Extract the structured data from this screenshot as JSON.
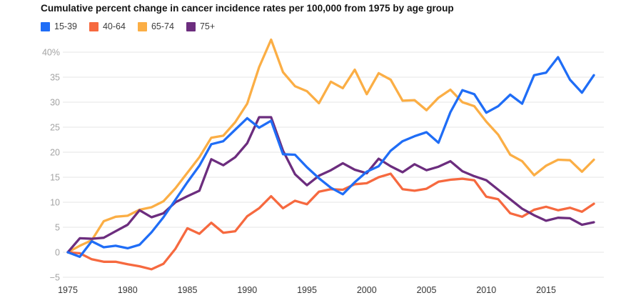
{
  "title": "Cumulative percent change in cancer incidence rates per 100,000 from 1975 by age group",
  "legend": [
    {
      "label": "15-39",
      "color": "#1f6df6"
    },
    {
      "label": "40-64",
      "color": "#f6693f"
    },
    {
      "label": "65-74",
      "color": "#fbae45"
    },
    {
      "label": "75+",
      "color": "#6c2d7e"
    }
  ],
  "colors": {
    "gridline": "#e4e4e4",
    "y_tick_text": "#a3a3a3",
    "x_tick_text": "#363636",
    "title_text": "#141414"
  },
  "chart_data": {
    "type": "line",
    "title": "Cumulative percent change in cancer incidence rates per 100,000 from 1975 by age group",
    "grid": true,
    "legend_position": "top-left",
    "x": [
      1975,
      1976,
      1977,
      1978,
      1979,
      1980,
      1981,
      1982,
      1983,
      1984,
      1985,
      1986,
      1987,
      1988,
      1989,
      1990,
      1991,
      1992,
      1993,
      1994,
      1995,
      1996,
      1997,
      1998,
      1999,
      2000,
      2001,
      2002,
      2003,
      2004,
      2005,
      2006,
      2007,
      2008,
      2009,
      2010,
      2011,
      2012,
      2013,
      2014,
      2015,
      2016,
      2017,
      2018,
      2019
    ],
    "series": [
      {
        "name": "15-39",
        "color": "#1f6df6",
        "values": [
          0,
          -0.9,
          2.2,
          1.0,
          1.3,
          0.8,
          1.5,
          4.0,
          7.0,
          10.5,
          14.0,
          17.3,
          21.6,
          22.2,
          24.5,
          26.8,
          24.9,
          26.3,
          19.6,
          19.5,
          17.0,
          14.8,
          12.9,
          11.6,
          14.0,
          16.1,
          17.2,
          20.3,
          22.2,
          23.2,
          24.0,
          21.9,
          28.0,
          32.4,
          31.6,
          27.9,
          29.2,
          31.5,
          29.7,
          35.4,
          35.9,
          39.0,
          34.5,
          31.9,
          35.4
        ]
      },
      {
        "name": "40-64",
        "color": "#f6693f",
        "values": [
          0,
          -0.2,
          -1.4,
          -1.9,
          -1.9,
          -2.4,
          -2.8,
          -3.4,
          -2.3,
          0.7,
          4.8,
          3.7,
          5.9,
          3.9,
          4.2,
          7.2,
          8.8,
          11.2,
          8.8,
          10.3,
          9.6,
          12.1,
          12.6,
          12.5,
          13.6,
          13.8,
          15.0,
          15.7,
          12.6,
          12.3,
          12.7,
          14.1,
          14.5,
          14.7,
          14.4,
          11.1,
          10.6,
          7.8,
          7.1,
          8.5,
          9.1,
          8.4,
          8.9,
          8.1,
          9.7
        ]
      },
      {
        "name": "65-74",
        "color": "#fbae45",
        "values": [
          0,
          1.3,
          2.4,
          6.2,
          7.1,
          7.3,
          8.5,
          9.0,
          10.2,
          12.8,
          15.9,
          19.0,
          22.9,
          23.3,
          26.0,
          29.7,
          37.0,
          42.5,
          36.0,
          33.2,
          32.2,
          29.8,
          34.1,
          32.8,
          36.5,
          31.6,
          35.8,
          34.5,
          30.3,
          30.4,
          28.4,
          30.9,
          32.5,
          30.0,
          29.2,
          26.1,
          23.5,
          19.5,
          18.2,
          15.4,
          17.3,
          18.5,
          18.4,
          16.1,
          18.5
        ]
      },
      {
        "name": "75+",
        "color": "#6c2d7e",
        "values": [
          0,
          2.8,
          2.7,
          2.9,
          4.2,
          5.5,
          8.4,
          7.0,
          7.8,
          10.0,
          11.2,
          12.3,
          18.6,
          17.4,
          19.0,
          21.8,
          27.0,
          27.0,
          20.3,
          15.6,
          13.4,
          15.3,
          16.4,
          17.8,
          16.5,
          15.8,
          18.7,
          17.2,
          16.0,
          17.6,
          16.4,
          17.1,
          18.2,
          16.2,
          15.2,
          14.4,
          12.5,
          10.6,
          8.7,
          7.4,
          6.3,
          6.9,
          6.8,
          5.5,
          6.0
        ]
      }
    ],
    "y_axis": {
      "range": [
        -5,
        43
      ],
      "ticks": [
        {
          "v": 40,
          "label": "40%"
        },
        {
          "v": 35,
          "label": "35"
        },
        {
          "v": 30,
          "label": "30"
        },
        {
          "v": 25,
          "label": "25"
        },
        {
          "v": 20,
          "label": "20"
        },
        {
          "v": 15,
          "label": "15"
        },
        {
          "v": 10,
          "label": "10"
        },
        {
          "v": 5,
          "label": "5"
        },
        {
          "v": 0,
          "label": "0"
        },
        {
          "v": -5,
          "label": "−5"
        }
      ]
    },
    "x_axis": {
      "range": [
        1975,
        2019
      ],
      "ticks": [
        {
          "v": 1975,
          "label": "1975"
        },
        {
          "v": 1980,
          "label": "1980"
        },
        {
          "v": 1985,
          "label": "1985"
        },
        {
          "v": 1990,
          "label": "1990"
        },
        {
          "v": 1995,
          "label": "1995"
        },
        {
          "v": 2000,
          "label": "2000"
        },
        {
          "v": 2005,
          "label": "2005"
        },
        {
          "v": 2010,
          "label": "2010"
        },
        {
          "v": 2015,
          "label": "2015"
        }
      ]
    }
  }
}
